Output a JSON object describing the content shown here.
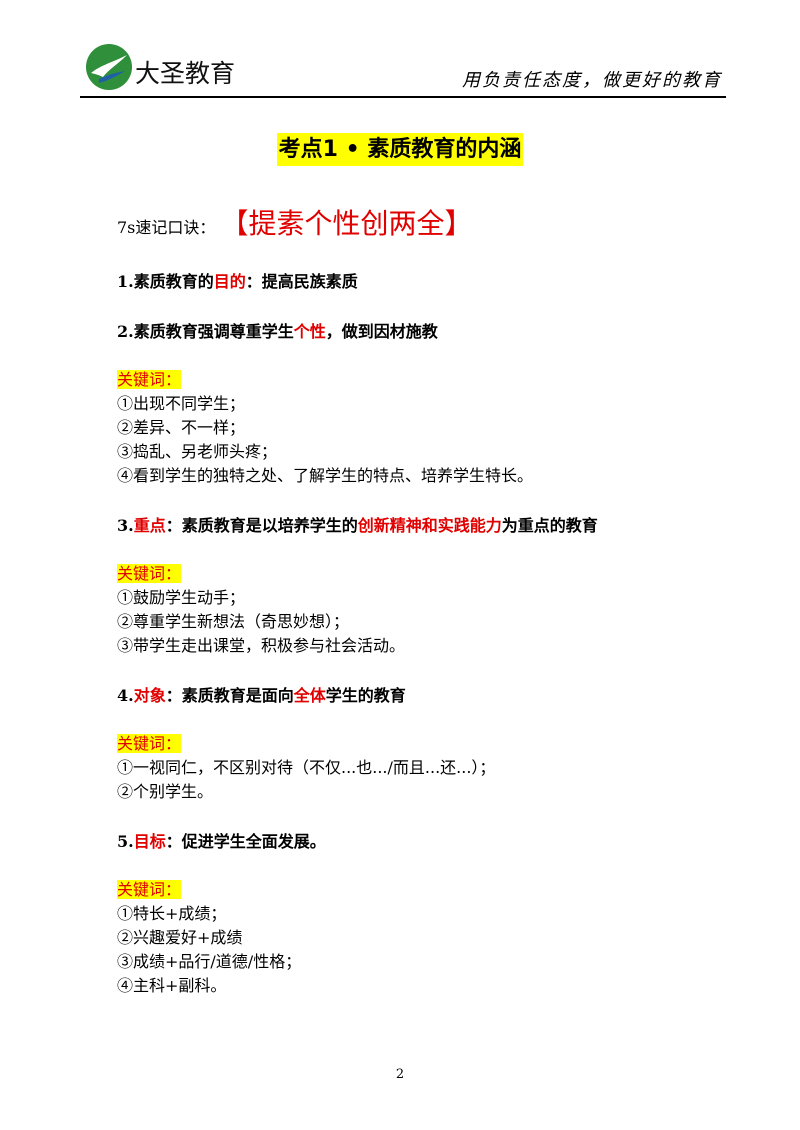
{
  "header": {
    "brand": "大圣教育",
    "slogan": "用负责任态度，做更好的教育"
  },
  "title": "考点1 • 素质教育的内涵",
  "mnemonic": {
    "label": "7s速记口诀：",
    "text": "【提素个性创两全】"
  },
  "sections": [
    {
      "heading": [
        {
          "text": "1.素质教育的",
          "red": false
        },
        {
          "text": "目的",
          "red": true
        },
        {
          "text": "：提高民族素质",
          "red": false
        }
      ]
    },
    {
      "heading": [
        {
          "text": "2.素质教育强调尊重学生",
          "red": false
        },
        {
          "text": "个性",
          "red": true
        },
        {
          "text": "，做到因材施教",
          "red": false
        }
      ],
      "keywords": {
        "label": "关键词：",
        "items": [
          "①出现不同学生；",
          "②差异、不一样；",
          "③捣乱、另老师头疼；",
          "④看到学生的独特之处、了解学生的特点、培养学生特长。"
        ]
      }
    },
    {
      "heading": [
        {
          "text": "3.",
          "red": false
        },
        {
          "text": "重点",
          "red": true
        },
        {
          "text": "：素质教育是以培养学生的",
          "red": false
        },
        {
          "text": "创新精神和实践能力",
          "red": true
        },
        {
          "text": "为重点的教育",
          "red": false
        }
      ],
      "keywords": {
        "label": "关键词：",
        "items": [
          "①鼓励学生动手；",
          "②尊重学生新想法（奇思妙想）；",
          "③带学生走出课堂，积极参与社会活动。"
        ]
      }
    },
    {
      "heading": [
        {
          "text": "4.",
          "red": false
        },
        {
          "text": "对象",
          "red": true
        },
        {
          "text": "：素质教育是面向",
          "red": false
        },
        {
          "text": "全体",
          "red": true
        },
        {
          "text": "学生的教育",
          "red": false
        }
      ],
      "keywords": {
        "label": "关键词：",
        "items": [
          "①一视同仁，不区别对待（不仅...也.../而且...还...）；",
          "②个别学生。"
        ]
      }
    },
    {
      "heading": [
        {
          "text": "5.",
          "red": false
        },
        {
          "text": "目标",
          "red": true
        },
        {
          "text": "：促进学生全面发展。",
          "red": false
        }
      ],
      "keywords": {
        "label": "关键词：",
        "items": [
          "①特长+成绩；",
          "②兴趣爱好+成绩",
          "③成绩+品行/道德/性格；",
          "④主科+副科。"
        ]
      }
    }
  ],
  "page_number": "2"
}
